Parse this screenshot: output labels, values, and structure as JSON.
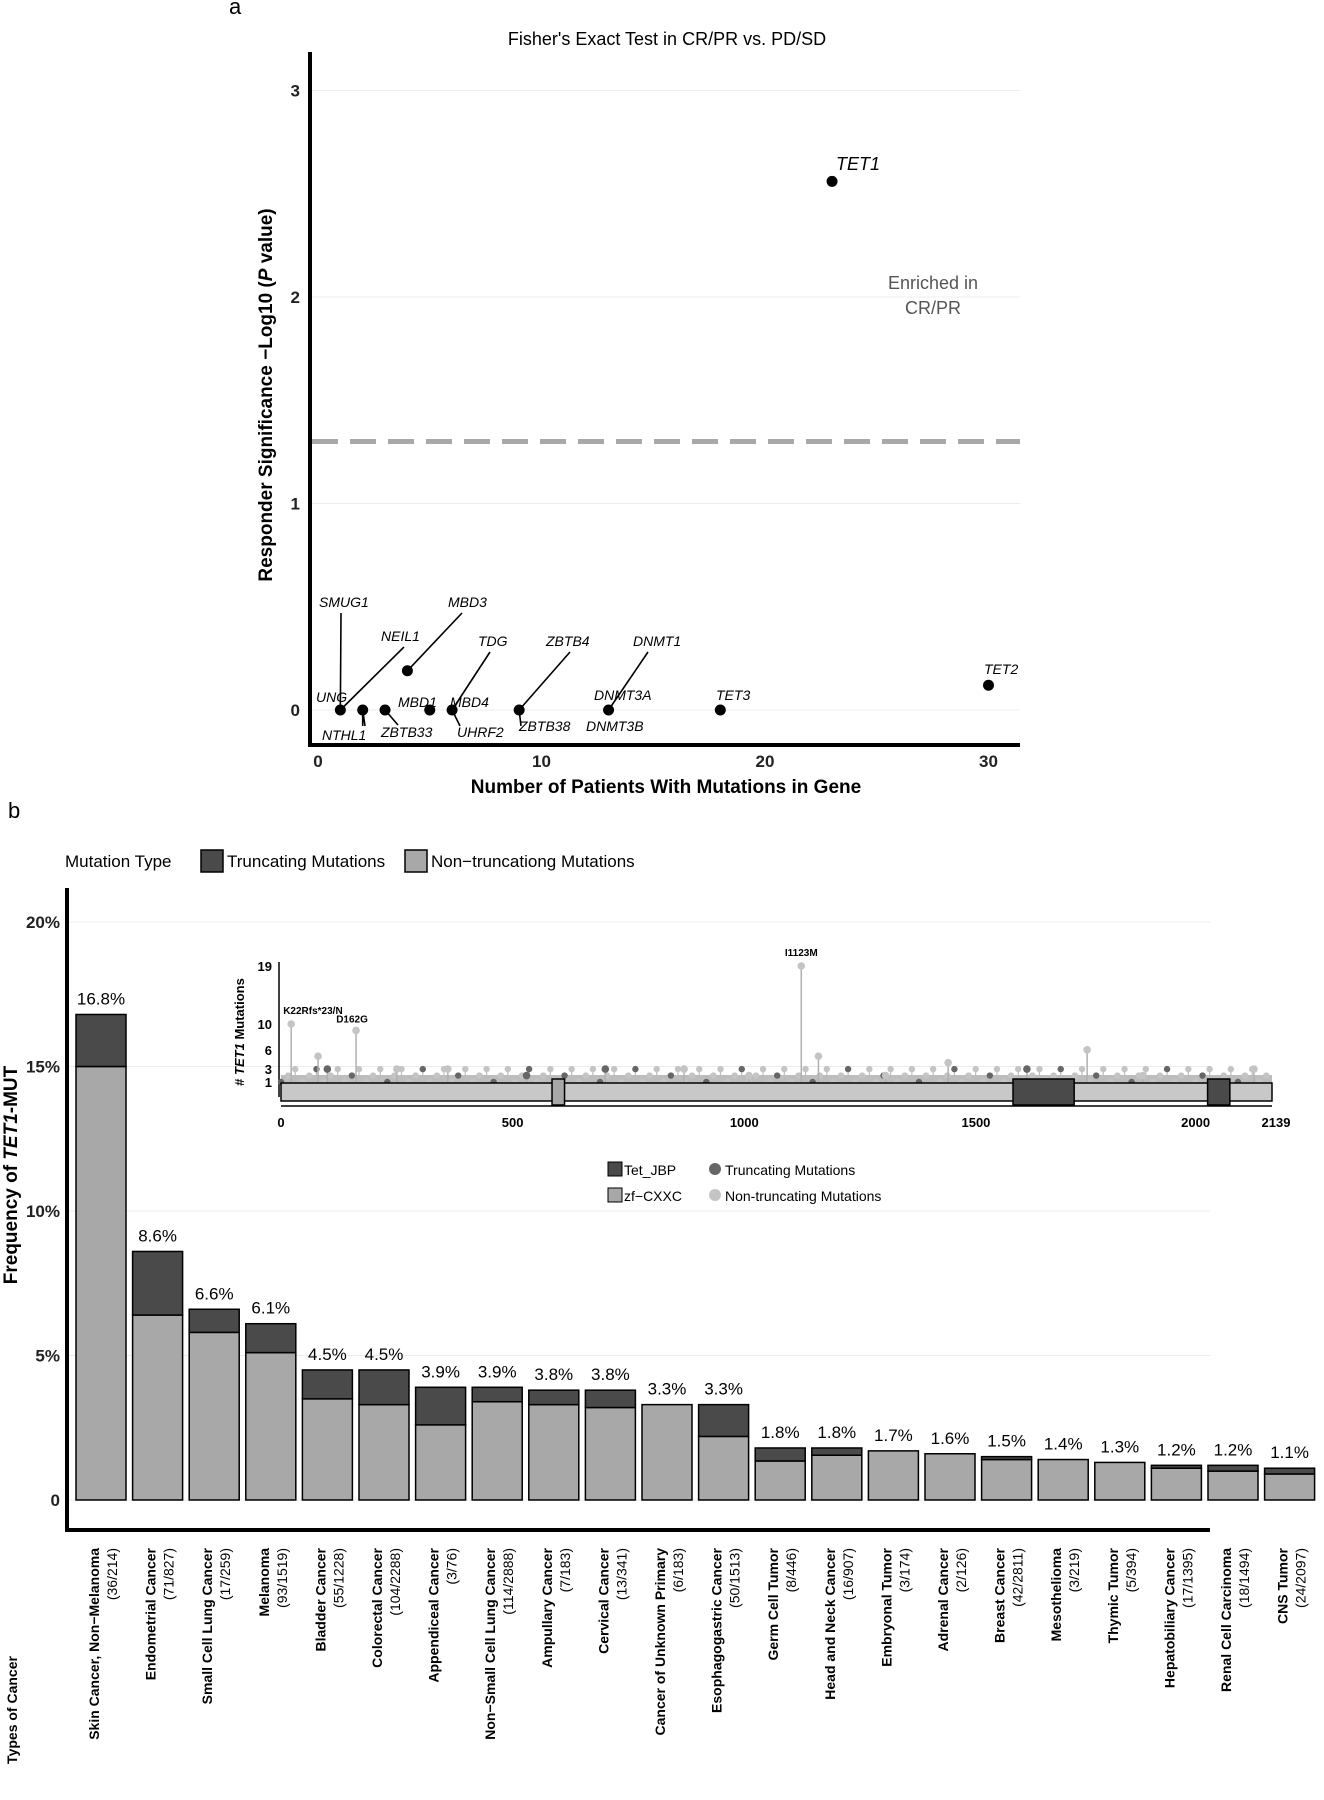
{
  "panel_a": {
    "letter": "a",
    "title": "Fisher's Exact Test in CR/PR vs. PD/SD",
    "xlabel": "Number of Patients With Mutations in Gene",
    "ylabel": "Responder Significance −Log10 (P value)",
    "annotation_line1": "Enriched in",
    "annotation_line2": "CR/PR"
  },
  "panel_b": {
    "letter": "b",
    "legend_title": "Mutation Type",
    "legend_truncating": "Truncating Mutations",
    "legend_nontruncating": "Non−truncationg Mutations",
    "ylabel_prefix": "Frequency of ",
    "ylabel_gene": "TET1",
    "ylabel_suffix": "-MUT",
    "xlabel": "Types of Cancer"
  },
  "inset": {
    "ylabel_prefix": "# ",
    "ylabel_gene": "TET1",
    "ylabel_suffix": " Mutations",
    "legend_tet_jbp": "Tet_JBP",
    "legend_zf_cxxc": "zf−CXXC",
    "legend_truncating": "Truncating Mutations",
    "legend_nontruncating": "Non-truncating Mutations"
  },
  "chart_data": [
    {
      "type": "scatter",
      "title": "Fisher's Exact Test in CR/PR vs. PD/SD",
      "xlabel": "Number of Patients With Mutations in Gene",
      "ylabel": "Responder Significance −Log10 (P value)",
      "xlim": [
        0,
        31
      ],
      "ylim": [
        0,
        3.15
      ],
      "x_ticks": [
        0,
        10,
        20,
        30
      ],
      "y_ticks": [
        0,
        1,
        2,
        3
      ],
      "significance_line": 1.3,
      "points": [
        {
          "x": 23,
          "y": 2.56,
          "labels": [
            "TET1"
          ]
        },
        {
          "x": 30,
          "y": 0.12,
          "labels": [
            "TET2"
          ]
        },
        {
          "x": 18,
          "y": 0,
          "labels": [
            "TET3"
          ]
        },
        {
          "x": 13,
          "y": 0,
          "labels": [
            "DNMT1",
            "DNMT3A",
            "DNMT3B"
          ]
        },
        {
          "x": 9,
          "y": 0,
          "labels": [
            "ZBTB4",
            "ZBTB38"
          ]
        },
        {
          "x": 6,
          "y": 0,
          "labels": [
            "TDG",
            "MBD4",
            "UHRF2"
          ]
        },
        {
          "x": 5,
          "y": 0,
          "labels": [
            "MBD1"
          ]
        },
        {
          "x": 4,
          "y": 0.19,
          "labels": [
            "MBD3"
          ]
        },
        {
          "x": 3,
          "y": 0,
          "labels": [
            "ZBTB33"
          ]
        },
        {
          "x": 2,
          "y": 0,
          "labels": [
            "NTHL1"
          ]
        },
        {
          "x": 1,
          "y": 0,
          "labels": [
            "SMUG1",
            "NEIL1",
            "UNG"
          ]
        }
      ]
    },
    {
      "type": "bar",
      "stacked": true,
      "ylabel": "Frequency of TET1-MUT",
      "xlabel": "Types of Cancer",
      "ylim": [
        0,
        20
      ],
      "y_ticks": [
        "0",
        "5%",
        "10%",
        "15%",
        "20%"
      ],
      "categories": [
        "Skin Cancer, Non−Melanoma",
        "Endometrial Cancer",
        "Small Cell Lung Cancer",
        "Melanoma",
        "Bladder Cancer",
        "Colorectal Cancer",
        "Appendiceal Cancer",
        "Non−Small Cell Lung Cancer",
        "Ampullary Cancer",
        "Cervical Cancer",
        "Cancer of Unknown Primary",
        "Esophagogastric Cancer",
        "Germ Cell Tumor",
        "Head and Neck Cancer",
        "Embryonal Tumor",
        "Adrenal Cancer",
        "Breast Cancer",
        "Mesothelioma",
        "Thymic Tumor",
        "Hepatobiliary Cancer",
        "Renal Cell Carcinoma",
        "CNS Tumor"
      ],
      "counts": [
        "(36/214)",
        "(71/827)",
        "(17/259)",
        "(93/1519)",
        "(55/1228)",
        "(104/2288)",
        "(3/76)",
        "(114/2888)",
        "(7/183)",
        "(13/341)",
        "(6/183)",
        "(50/1513)",
        "(8/446)",
        "(16/907)",
        "(3/174)",
        "(2/126)",
        "(42/2811)",
        "(3/219)",
        "(5/394)",
        "(17/1395)",
        "(18/1494)",
        "(24/2097)"
      ],
      "totals_labels": [
        "16.8%",
        "8.6%",
        "6.6%",
        "6.1%",
        "4.5%",
        "4.5%",
        "3.9%",
        "3.9%",
        "3.8%",
        "3.8%",
        "3.3%",
        "3.3%",
        "1.8%",
        "1.8%",
        "1.7%",
        "1.6%",
        "1.5%",
        "1.4%",
        "1.3%",
        "1.2%",
        "1.2%",
        "1.1%"
      ],
      "series": [
        {
          "name": "Non−truncationg Mutations",
          "color": "#a8a8a8",
          "values": [
            15.0,
            6.4,
            5.8,
            5.1,
            3.5,
            3.3,
            2.6,
            3.4,
            3.3,
            3.2,
            3.3,
            2.2,
            1.35,
            1.55,
            1.7,
            1.6,
            1.4,
            1.4,
            1.3,
            1.1,
            1.0,
            0.9
          ]
        },
        {
          "name": "Truncating Mutations",
          "color": "#4a4a4a",
          "values": [
            1.8,
            2.2,
            0.8,
            1.0,
            1.0,
            1.2,
            1.3,
            0.5,
            0.5,
            0.6,
            0.0,
            1.1,
            0.45,
            0.25,
            0.0,
            0.0,
            0.1,
            0.0,
            0.0,
            0.1,
            0.2,
            0.2
          ]
        }
      ]
    },
    {
      "type": "lollipop",
      "ylabel": "# TET1 Mutations",
      "xlim": [
        0,
        2139
      ],
      "x_ticks": [
        0,
        500,
        1000,
        1500,
        2000,
        2139
      ],
      "y_ticks": [
        1,
        3,
        6,
        10,
        19
      ],
      "domains": [
        {
          "name": "zf−CXXC",
          "start": 585,
          "end": 612,
          "color": "#a8a8a8"
        },
        {
          "name": "Tet_JBP",
          "start": 1580,
          "end": 1712,
          "color": "#4a4a4a"
        },
        {
          "name": "Tet_JBP",
          "start": 2000,
          "end": 2048,
          "color": "#4a4a4a"
        }
      ],
      "labeled_mutations": [
        {
          "label": "K22Rfs*23/N",
          "position": 22,
          "count": 10
        },
        {
          "label": "D162G",
          "position": 162,
          "count": 9
        },
        {
          "label": "I1123M",
          "position": 1123,
          "count": 19
        }
      ],
      "mutations": [
        {
          "pos": 22,
          "count": 10,
          "truncating": false
        },
        {
          "pos": 162,
          "count": 9,
          "truncating": false
        },
        {
          "pos": 1123,
          "count": 19,
          "truncating": false
        },
        {
          "pos": 80,
          "count": 5,
          "truncating": false
        },
        {
          "pos": 100,
          "count": 3,
          "truncating": true
        },
        {
          "pos": 250,
          "count": 3,
          "truncating": false
        },
        {
          "pos": 360,
          "count": 3,
          "truncating": false
        },
        {
          "pos": 530,
          "count": 2,
          "truncating": true
        },
        {
          "pos": 700,
          "count": 3,
          "truncating": true
        },
        {
          "pos": 870,
          "count": 3,
          "truncating": false
        },
        {
          "pos": 1010,
          "count": 2,
          "truncating": false
        },
        {
          "pos": 1160,
          "count": 5,
          "truncating": false
        },
        {
          "pos": 1305,
          "count": 2,
          "truncating": false
        },
        {
          "pos": 1440,
          "count": 4,
          "truncating": false
        },
        {
          "pos": 1610,
          "count": 3,
          "truncating": true
        },
        {
          "pos": 1740,
          "count": 6,
          "truncating": false
        },
        {
          "pos": 1860,
          "count": 2,
          "truncating": false
        },
        {
          "pos": 2100,
          "count": 3,
          "truncating": false
        }
      ]
    }
  ]
}
